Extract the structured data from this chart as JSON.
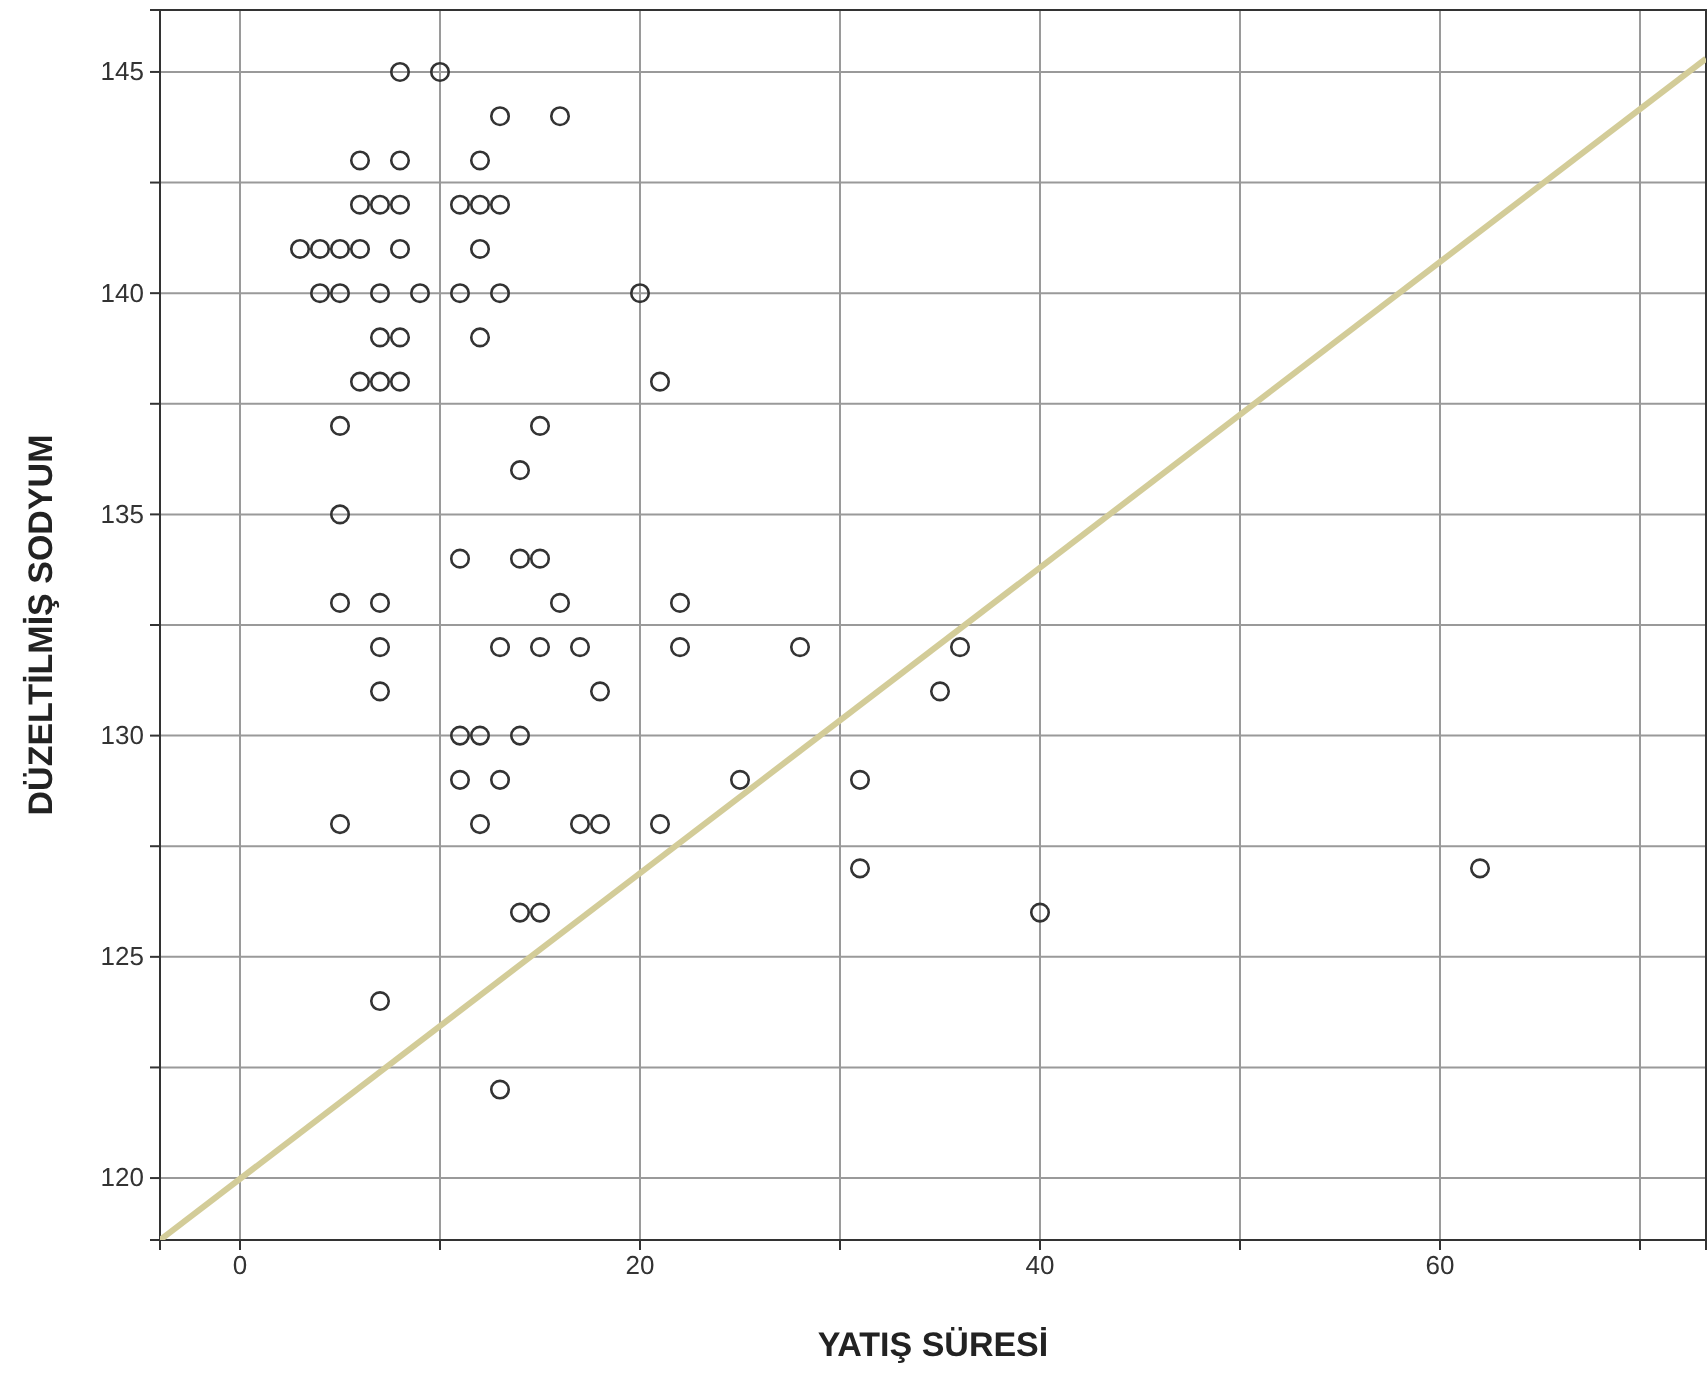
{
  "chart_data": {
    "type": "scatter",
    "xlabel": "YATIŞ SÜRESİ",
    "ylabel": "DÜZELTİLMİŞ SODYUM",
    "xlim": [
      -4,
      73.3
    ],
    "ylim": [
      118.6,
      146.4
    ],
    "xticks": [
      0,
      {
        "value": 10,
        "label": null
      },
      20,
      {
        "value": 30,
        "label": null
      },
      40,
      {
        "value": 50,
        "label": null
      },
      60,
      {
        "value": 70,
        "label": null
      }
    ],
    "yticks": [
      120,
      {
        "value": 122.5,
        "label": null
      },
      125,
      {
        "value": 127.5,
        "label": null
      },
      130,
      {
        "value": 132.5,
        "label": null
      },
      135,
      {
        "value": 137.5,
        "label": null
      },
      140,
      {
        "value": 142.5,
        "label": null
      },
      145
    ],
    "grid": true,
    "series": [
      {
        "color": "#333333",
        "marker": "circle",
        "x": [
          8,
          10,
          13,
          16,
          6,
          8,
          12,
          6,
          7,
          8,
          11,
          12,
          13,
          3,
          4,
          5,
          6,
          8,
          12,
          4,
          5,
          7,
          9,
          11,
          13,
          20,
          7,
          8,
          12,
          6,
          7,
          8,
          21,
          5,
          15,
          14,
          5,
          11,
          14,
          15,
          5,
          7,
          16,
          22,
          7,
          13,
          15,
          17,
          22,
          28,
          36,
          7,
          18,
          35,
          11,
          12,
          14,
          11,
          13,
          25,
          31,
          5,
          12,
          17,
          18,
          21,
          31,
          62,
          14,
          15,
          40,
          7,
          13
        ],
        "values": [
          145,
          145,
          144,
          144,
          143,
          143,
          143,
          142,
          142,
          142,
          142,
          142,
          142,
          141,
          141,
          141,
          141,
          141,
          141,
          140,
          140,
          140,
          140,
          140,
          140,
          140,
          139,
          139,
          139,
          138,
          138,
          138,
          138,
          137,
          137,
          136,
          135,
          134,
          134,
          134,
          133,
          133,
          133,
          133,
          132,
          132,
          132,
          132,
          132,
          132,
          132,
          131,
          131,
          131,
          130,
          130,
          130,
          129,
          129,
          129,
          129,
          128,
          128,
          128,
          128,
          128,
          127,
          127,
          126,
          126,
          126,
          124,
          122
        ]
      },
      {
        "type": "line",
        "marker": "none",
        "color": "#d3cc98",
        "x": [
          -4,
          73.3
        ],
        "values": [
          118.6,
          145.3
        ]
      }
    ]
  }
}
